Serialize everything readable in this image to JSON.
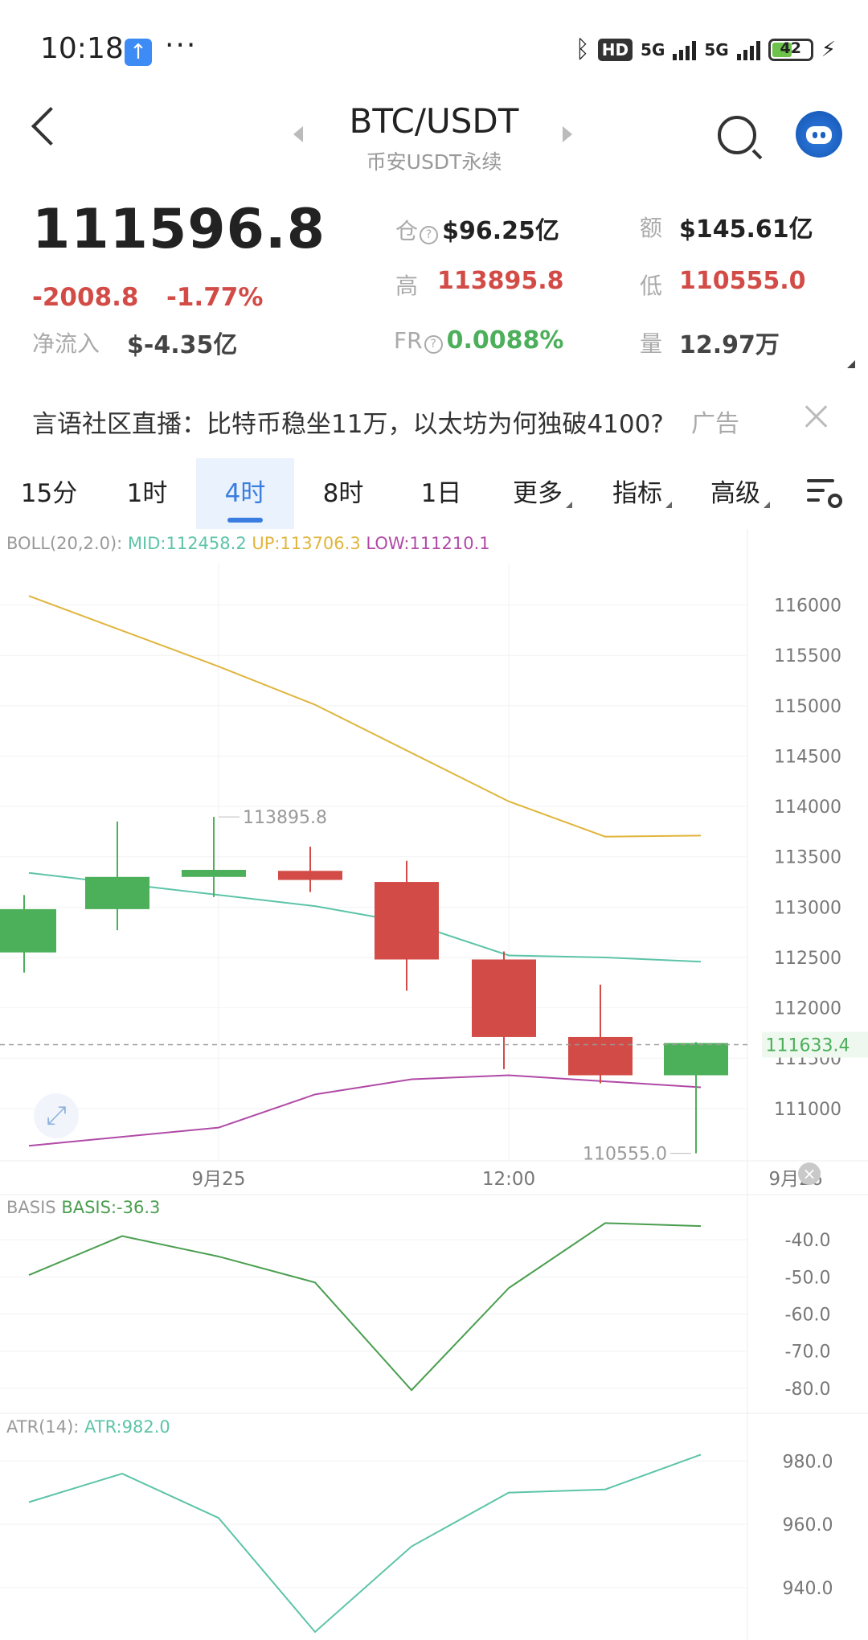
{
  "status_bar": {
    "time": "10:18",
    "upload_icon": "upload-arrow-icon",
    "more": "···",
    "hd_label": "HD",
    "network1": "5G",
    "network2": "5G",
    "battery": "42",
    "icons": [
      "bluetooth-icon",
      "signal-icon",
      "battery-icon",
      "charging-icon"
    ]
  },
  "header": {
    "title": "BTC/USDT",
    "subtitle": "币安USDT永续",
    "icons": [
      "back-icon",
      "prev-pair-icon",
      "next-pair-icon",
      "search-icon",
      "assistant-avatar-icon"
    ]
  },
  "ticker": {
    "last_price": "111596.8",
    "change": "-2008.8",
    "change_pct": "-1.77%",
    "net_inflow_label": "净流入",
    "net_inflow_value": "$-4.35亿",
    "open_interest_label": "仓",
    "open_interest_value": "$96.25亿",
    "turnover_label": "额",
    "turnover_value": "$145.61亿",
    "high_label": "高",
    "high_value": "113895.8",
    "low_label": "低",
    "low_value": "110555.0",
    "funding_label": "FR",
    "funding_value": "0.0088%",
    "volume_label": "量",
    "volume_value": "12.97万"
  },
  "ad": {
    "text": "言语社区直播：比特币稳坐11万，以太坊为何独破4100?",
    "tag": "广告"
  },
  "tabs": [
    {
      "label": "15分"
    },
    {
      "label": "1时"
    },
    {
      "label": "4时",
      "active": true
    },
    {
      "label": "8时"
    },
    {
      "label": "1日"
    },
    {
      "label": "更多"
    },
    {
      "label": "指标"
    },
    {
      "label": "高级"
    }
  ],
  "colors": {
    "up": "#4caf5a",
    "down": "#d24b46",
    "mid": "#5cc4a8",
    "upper": "#e0b53c",
    "lower": "#b04aa6",
    "basis": "#4a9e4f",
    "accent": "#3a7de0"
  },
  "indicators": {
    "boll": {
      "name": "BOLL(20,2.0):",
      "mid": "MID:112458.2",
      "up": "UP:113706.3",
      "low": "LOW:111210.1"
    },
    "basis": {
      "name": "BASIS",
      "value": "BASIS:-36.3"
    },
    "atr": {
      "name": "ATR(14):",
      "value": "ATR:982.0"
    }
  },
  "chart_data": [
    {
      "type": "candlestick",
      "x_labels": [
        "9月25",
        "12:00",
        "9月26"
      ],
      "y_ticks": [
        116000,
        115500,
        115000,
        114500,
        114000,
        113500,
        113000,
        112500,
        112000,
        111500,
        111000
      ],
      "ylim": [
        110480,
        116420
      ],
      "current_price_label": "111633.4",
      "current_price": 111633.4,
      "high_annotation": "113895.8",
      "low_annotation": "110555.0",
      "candles": [
        {
          "open": 112550,
          "high": 113120,
          "low": 112350,
          "close": 112980
        },
        {
          "open": 112980,
          "high": 113850,
          "low": 112770,
          "close": 113300
        },
        {
          "open": 113300,
          "high": 113895.8,
          "low": 113100,
          "close": 113370
        },
        {
          "open": 113360,
          "high": 113600,
          "low": 113150,
          "close": 113270
        },
        {
          "open": 113250,
          "high": 113460,
          "low": 112170,
          "close": 112480
        },
        {
          "open": 112480,
          "high": 112560,
          "low": 111390,
          "close": 111710
        },
        {
          "open": 111710,
          "high": 112230,
          "low": 111250,
          "close": 111330
        },
        {
          "open": 111330,
          "high": 111660,
          "low": 110555,
          "close": 111650
        }
      ],
      "boll_upper": [
        116090,
        115390,
        115010,
        114050,
        113700,
        113710
      ],
      "boll_mid": [
        113340,
        113010,
        112840,
        112520,
        112500,
        112458.2
      ],
      "boll_lower": [
        110630,
        110810,
        111140,
        111290,
        111330,
        111210.1
      ]
    },
    {
      "type": "line",
      "name": "BASIS",
      "y_ticks": [
        "-40.0",
        "-50.0",
        "-60.0",
        "-70.0",
        "-80.0"
      ],
      "ylim": [
        -85,
        -30
      ],
      "values": [
        -49.5,
        -39,
        -44.5,
        -51.5,
        -80.5,
        -53,
        -35.5,
        -36.3
      ]
    },
    {
      "type": "line",
      "name": "ATR",
      "y_ticks": [
        "980.0",
        "960.0",
        "940.0"
      ],
      "ylim": [
        926,
        992
      ],
      "values": [
        967,
        976,
        962,
        926,
        953,
        970,
        971,
        982
      ]
    }
  ]
}
